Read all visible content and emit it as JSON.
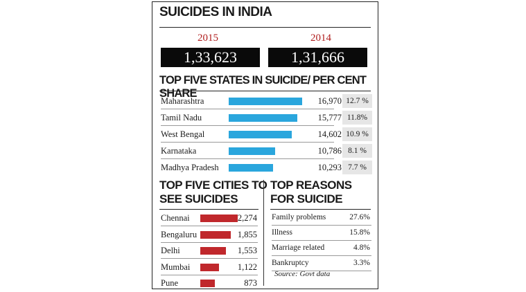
{
  "header": {
    "title": "SUICIDES IN INDIA"
  },
  "totals": [
    {
      "year": "2015",
      "value": "1,33,623"
    },
    {
      "year": "2014",
      "value": "1,31,666"
    }
  ],
  "states": {
    "title": "TOP FIVE STATES IN SUICIDE/ PER CENT SHARE",
    "rows": [
      {
        "name": "Maharashtra",
        "value": "16,970",
        "share": "12.7 %"
      },
      {
        "name": "Tamil Nadu",
        "value": "15,777",
        "share": "11.8%"
      },
      {
        "name": "West Bengal",
        "value": "14,602",
        "share": "10.9 %"
      },
      {
        "name": "Karnataka",
        "value": "10,786",
        "share": "8.1 %"
      },
      {
        "name": "Madhya Pradesh",
        "value": "10,293",
        "share": "7.7 %"
      }
    ]
  },
  "cities": {
    "title_line1": "TOP FIVE CITIES TO",
    "title_line2": "SEE SUICIDES",
    "rows": [
      {
        "name": "Chennai",
        "value": "2,274"
      },
      {
        "name": "Bengaluru",
        "value": "1,855"
      },
      {
        "name": "Delhi",
        "value": "1,553"
      },
      {
        "name": "Mumbai",
        "value": "1,122"
      },
      {
        "name": "Pune",
        "value": "873"
      }
    ]
  },
  "reasons": {
    "title_line1": "TOP REASONS",
    "title_line2": "FOR SUICIDE",
    "rows": [
      {
        "name": "Family problems",
        "share": "27.6%"
      },
      {
        "name": "Illness",
        "share": "15.8%"
      },
      {
        "name": "Marriage related",
        "share": "4.8%"
      },
      {
        "name": "Bankruptcy",
        "share": "3.3%"
      }
    ],
    "source": "Source: Govt data"
  },
  "colors": {
    "state_bar": "#2aa6dd",
    "city_bar": "#c0282c",
    "year_text": "#b01d1d",
    "share_bg": "#e6e6e6"
  },
  "chart_data": [
    {
      "type": "bar",
      "title": "TOP FIVE STATES IN SUICIDE/ PER CENT SHARE",
      "categories": [
        "Maharashtra",
        "Tamil Nadu",
        "West Bengal",
        "Karnataka",
        "Madhya Pradesh"
      ],
      "values": [
        16970,
        15777,
        14602,
        10786,
        10293
      ],
      "share_percent": [
        12.7,
        11.8,
        10.9,
        8.1,
        7.7
      ]
    },
    {
      "type": "bar",
      "title": "TOP FIVE CITIES TO SEE SUICIDES",
      "categories": [
        "Chennai",
        "Bengaluru",
        "Delhi",
        "Mumbai",
        "Pune"
      ],
      "values": [
        2274,
        1855,
        1553,
        1122,
        873
      ]
    },
    {
      "type": "table",
      "title": "TOP REASONS FOR SUICIDE",
      "categories": [
        "Family problems",
        "Illness",
        "Marriage related",
        "Bankruptcy"
      ],
      "values": [
        27.6,
        15.8,
        4.8,
        3.3
      ]
    }
  ]
}
